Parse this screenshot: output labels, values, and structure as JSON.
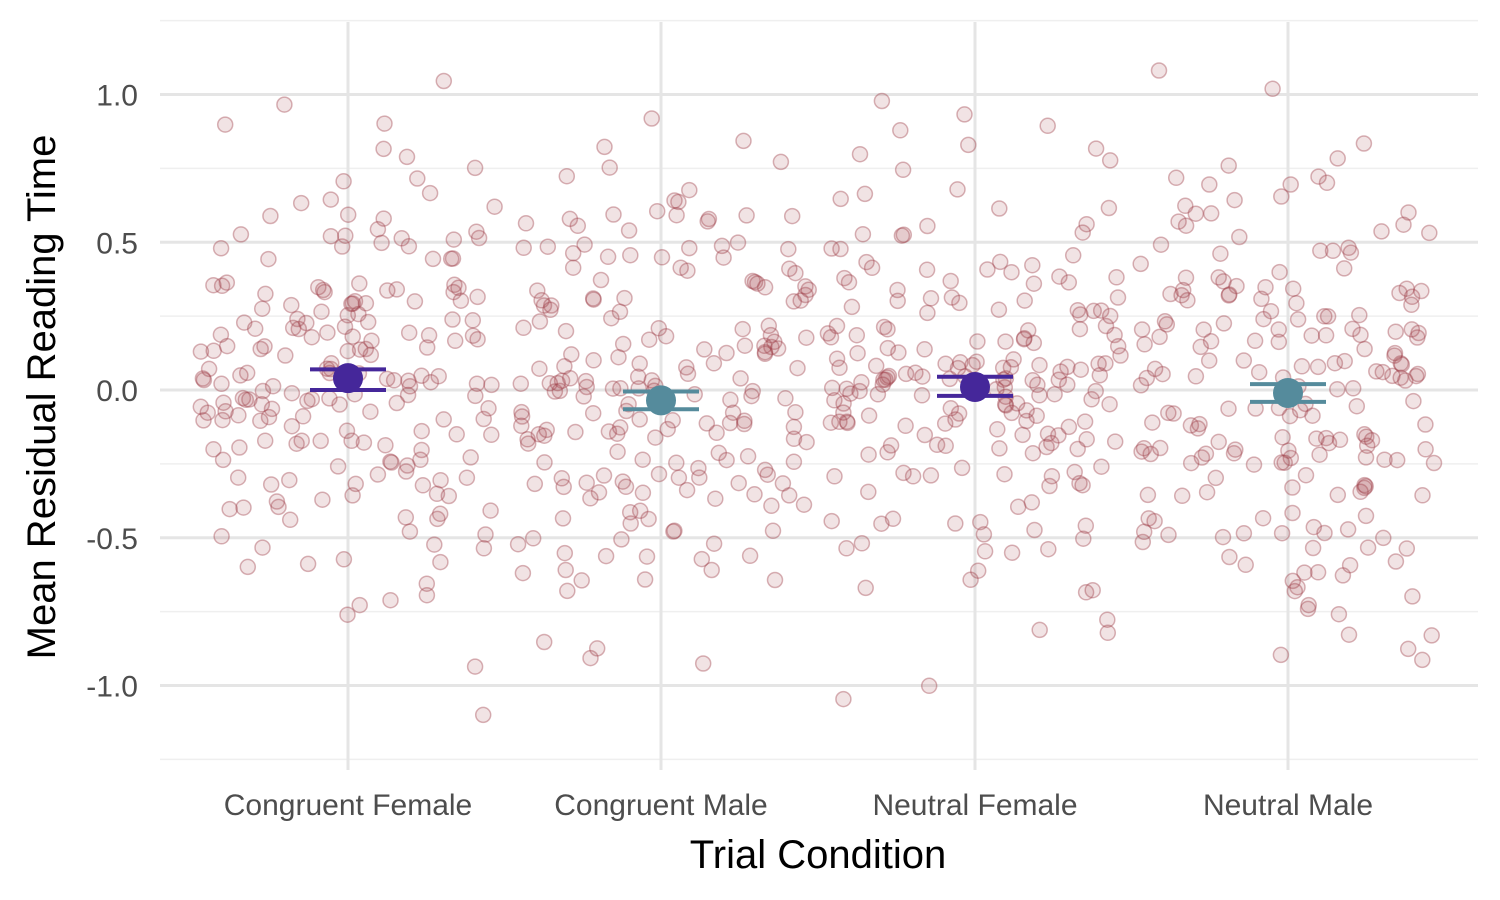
{
  "chart_data": {
    "type": "scatter",
    "categories": [
      "Congruent Female",
      "Congruent Male",
      "Neutral Female",
      "Neutral Male"
    ],
    "xlabel": "Trial Condition",
    "ylabel": "Mean Residual Reading Time",
    "ylim": [
      -1.25,
      1.25
    ],
    "yticks": [
      1.0,
      0.5,
      0.0,
      -0.5,
      -1.0
    ],
    "ytick_labels": [
      "1.0",
      "0.5",
      "0.0",
      "-0.5",
      "-1.0"
    ],
    "grid": true,
    "legend": "none",
    "means": [
      {
        "category": "Congruent Female",
        "mean": 0.04,
        "lower": 0.0,
        "upper": 0.07,
        "color": "#45279a"
      },
      {
        "category": "Congruent Male",
        "mean": -0.035,
        "lower": -0.065,
        "upper": -0.005,
        "color": "#558b9c"
      },
      {
        "category": "Neutral Female",
        "mean": 0.01,
        "lower": -0.02,
        "upper": 0.045,
        "color": "#45279a"
      },
      {
        "category": "Neutral Male",
        "mean": -0.01,
        "lower": -0.04,
        "upper": 0.02,
        "color": "#558b9c"
      }
    ],
    "points_color": "#a0404a",
    "points_per_category": 200,
    "points_spread": 0.39
  }
}
